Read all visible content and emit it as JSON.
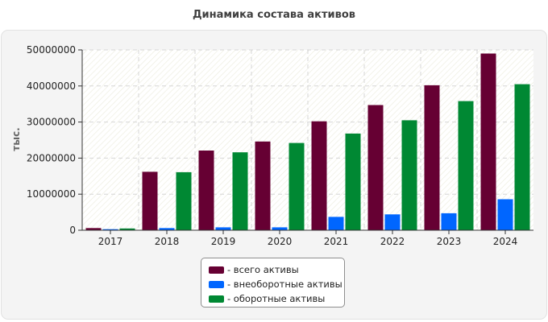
{
  "chart_data": {
    "type": "bar",
    "title": "Динамика состава активов",
    "xlabel": "",
    "ylabel": "тыс.",
    "ylim": [
      0,
      50000000
    ],
    "yticks": [
      0,
      10000000,
      20000000,
      30000000,
      40000000,
      50000000
    ],
    "ytick_labels": [
      "0",
      "10000000",
      "20000000",
      "30000000",
      "40000000",
      "50000000"
    ],
    "grid": true,
    "legend_position": "bottom-center",
    "categories": [
      "2017",
      "2018",
      "2019",
      "2020",
      "2021",
      "2022",
      "2023",
      "2024"
    ],
    "series": [
      {
        "name": "- всего активы",
        "color": "#660033",
        "values": [
          600000,
          16200000,
          22100000,
          24600000,
          30200000,
          34700000,
          40200000,
          49000000
        ]
      },
      {
        "name": "- внеоборотные активы",
        "color": "#0066ff",
        "values": [
          300000,
          600000,
          800000,
          800000,
          3700000,
          4400000,
          4700000,
          8600000
        ]
      },
      {
        "name": "- оборотные активы",
        "color": "#008833",
        "values": [
          500000,
          16100000,
          21600000,
          24200000,
          26800000,
          30500000,
          35800000,
          40500000
        ]
      }
    ]
  }
}
